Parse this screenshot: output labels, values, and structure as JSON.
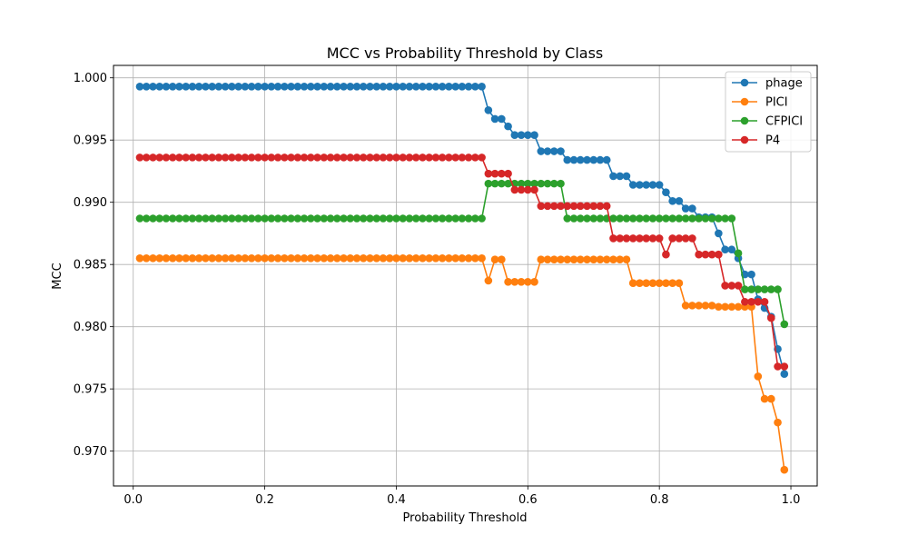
{
  "chart_data": {
    "type": "line",
    "title": "MCC vs Probability Threshold by Class",
    "xlabel": "Probability Threshold",
    "ylabel": "MCC",
    "xlim": [
      -0.03,
      1.04
    ],
    "ylim": [
      0.9672,
      1.001
    ],
    "xticks": [
      "0.0",
      "0.2",
      "0.4",
      "0.6",
      "0.8",
      "1.0"
    ],
    "yticks": [
      "0.970",
      "0.975",
      "0.980",
      "0.985",
      "0.990",
      "0.995",
      "1.000"
    ],
    "grid": true,
    "legend_position": "top-right",
    "x": [
      0.01,
      0.02,
      0.03,
      0.04,
      0.05,
      0.06,
      0.07,
      0.08,
      0.09,
      0.1,
      0.11,
      0.12,
      0.13,
      0.14,
      0.15,
      0.16,
      0.17,
      0.18,
      0.19,
      0.2,
      0.21,
      0.22,
      0.23,
      0.24,
      0.25,
      0.26,
      0.27,
      0.28,
      0.29,
      0.3,
      0.31,
      0.32,
      0.33,
      0.34,
      0.35,
      0.36,
      0.37,
      0.38,
      0.39,
      0.4,
      0.41,
      0.42,
      0.43,
      0.44,
      0.45,
      0.46,
      0.47,
      0.48,
      0.49,
      0.5,
      0.51,
      0.52,
      0.53,
      0.54,
      0.55,
      0.56,
      0.57,
      0.58,
      0.59,
      0.6,
      0.61,
      0.62,
      0.63,
      0.64,
      0.65,
      0.66,
      0.67,
      0.68,
      0.69,
      0.7,
      0.71,
      0.72,
      0.73,
      0.74,
      0.75,
      0.76,
      0.77,
      0.78,
      0.79,
      0.8,
      0.81,
      0.82,
      0.83,
      0.84,
      0.85,
      0.86,
      0.87,
      0.88,
      0.89,
      0.9,
      0.91,
      0.92,
      0.93,
      0.94,
      0.95,
      0.96,
      0.97,
      0.98,
      0.99
    ],
    "series": [
      {
        "name": "phage",
        "color": "#1f77b4",
        "values": [
          0.9993,
          0.9993,
          0.9993,
          0.9993,
          0.9993,
          0.9993,
          0.9993,
          0.9993,
          0.9993,
          0.9993,
          0.9993,
          0.9993,
          0.9993,
          0.9993,
          0.9993,
          0.9993,
          0.9993,
          0.9993,
          0.9993,
          0.9993,
          0.9993,
          0.9993,
          0.9993,
          0.9993,
          0.9993,
          0.9993,
          0.9993,
          0.9993,
          0.9993,
          0.9993,
          0.9993,
          0.9993,
          0.9993,
          0.9993,
          0.9993,
          0.9993,
          0.9993,
          0.9993,
          0.9993,
          0.9993,
          0.9993,
          0.9993,
          0.9993,
          0.9993,
          0.9993,
          0.9993,
          0.9993,
          0.9993,
          0.9993,
          0.9993,
          0.9993,
          0.9993,
          0.9993,
          0.9974,
          0.9967,
          0.9967,
          0.9961,
          0.9954,
          0.9954,
          0.9954,
          0.9954,
          0.9941,
          0.9941,
          0.9941,
          0.9941,
          0.9934,
          0.9934,
          0.9934,
          0.9934,
          0.9934,
          0.9934,
          0.9934,
          0.9921,
          0.9921,
          0.9921,
          0.9914,
          0.9914,
          0.9914,
          0.9914,
          0.9914,
          0.9908,
          0.9901,
          0.9901,
          0.9895,
          0.9895,
          0.9888,
          0.9888,
          0.9888,
          0.9875,
          0.9862,
          0.9862,
          0.9855,
          0.9842,
          0.9842,
          0.9822,
          0.9815,
          0.9808,
          0.9782,
          0.9762
        ]
      },
      {
        "name": "PICI",
        "color": "#ff7f0e",
        "values": [
          0.9855,
          0.9855,
          0.9855,
          0.9855,
          0.9855,
          0.9855,
          0.9855,
          0.9855,
          0.9855,
          0.9855,
          0.9855,
          0.9855,
          0.9855,
          0.9855,
          0.9855,
          0.9855,
          0.9855,
          0.9855,
          0.9855,
          0.9855,
          0.9855,
          0.9855,
          0.9855,
          0.9855,
          0.9855,
          0.9855,
          0.9855,
          0.9855,
          0.9855,
          0.9855,
          0.9855,
          0.9855,
          0.9855,
          0.9855,
          0.9855,
          0.9855,
          0.9855,
          0.9855,
          0.9855,
          0.9855,
          0.9855,
          0.9855,
          0.9855,
          0.9855,
          0.9855,
          0.9855,
          0.9855,
          0.9855,
          0.9855,
          0.9855,
          0.9855,
          0.9855,
          0.9855,
          0.9837,
          0.9854,
          0.9854,
          0.9836,
          0.9836,
          0.9836,
          0.9836,
          0.9836,
          0.9854,
          0.9854,
          0.9854,
          0.9854,
          0.9854,
          0.9854,
          0.9854,
          0.9854,
          0.9854,
          0.9854,
          0.9854,
          0.9854,
          0.9854,
          0.9854,
          0.9835,
          0.9835,
          0.9835,
          0.9835,
          0.9835,
          0.9835,
          0.9835,
          0.9835,
          0.9817,
          0.9817,
          0.9817,
          0.9817,
          0.9817,
          0.9816,
          0.9816,
          0.9816,
          0.9816,
          0.9816,
          0.9816,
          0.976,
          0.9742,
          0.9742,
          0.9723,
          0.9685
        ]
      },
      {
        "name": "CFPICI",
        "color": "#2ca02c",
        "values": [
          0.9887,
          0.9887,
          0.9887,
          0.9887,
          0.9887,
          0.9887,
          0.9887,
          0.9887,
          0.9887,
          0.9887,
          0.9887,
          0.9887,
          0.9887,
          0.9887,
          0.9887,
          0.9887,
          0.9887,
          0.9887,
          0.9887,
          0.9887,
          0.9887,
          0.9887,
          0.9887,
          0.9887,
          0.9887,
          0.9887,
          0.9887,
          0.9887,
          0.9887,
          0.9887,
          0.9887,
          0.9887,
          0.9887,
          0.9887,
          0.9887,
          0.9887,
          0.9887,
          0.9887,
          0.9887,
          0.9887,
          0.9887,
          0.9887,
          0.9887,
          0.9887,
          0.9887,
          0.9887,
          0.9887,
          0.9887,
          0.9887,
          0.9887,
          0.9887,
          0.9887,
          0.9887,
          0.9915,
          0.9915,
          0.9915,
          0.9915,
          0.9915,
          0.9915,
          0.9915,
          0.9915,
          0.9915,
          0.9915,
          0.9915,
          0.9915,
          0.9887,
          0.9887,
          0.9887,
          0.9887,
          0.9887,
          0.9887,
          0.9887,
          0.9887,
          0.9887,
          0.9887,
          0.9887,
          0.9887,
          0.9887,
          0.9887,
          0.9887,
          0.9887,
          0.9887,
          0.9887,
          0.9887,
          0.9887,
          0.9887,
          0.9887,
          0.9887,
          0.9887,
          0.9887,
          0.9887,
          0.9859,
          0.983,
          0.983,
          0.983,
          0.983,
          0.983,
          0.983,
          0.9802
        ]
      },
      {
        "name": "P4",
        "color": "#d62728",
        "values": [
          0.9936,
          0.9936,
          0.9936,
          0.9936,
          0.9936,
          0.9936,
          0.9936,
          0.9936,
          0.9936,
          0.9936,
          0.9936,
          0.9936,
          0.9936,
          0.9936,
          0.9936,
          0.9936,
          0.9936,
          0.9936,
          0.9936,
          0.9936,
          0.9936,
          0.9936,
          0.9936,
          0.9936,
          0.9936,
          0.9936,
          0.9936,
          0.9936,
          0.9936,
          0.9936,
          0.9936,
          0.9936,
          0.9936,
          0.9936,
          0.9936,
          0.9936,
          0.9936,
          0.9936,
          0.9936,
          0.9936,
          0.9936,
          0.9936,
          0.9936,
          0.9936,
          0.9936,
          0.9936,
          0.9936,
          0.9936,
          0.9936,
          0.9936,
          0.9936,
          0.9936,
          0.9936,
          0.9923,
          0.9923,
          0.9923,
          0.9923,
          0.991,
          0.991,
          0.991,
          0.991,
          0.9897,
          0.9897,
          0.9897,
          0.9897,
          0.9897,
          0.9897,
          0.9897,
          0.9897,
          0.9897,
          0.9897,
          0.9897,
          0.9871,
          0.9871,
          0.9871,
          0.9871,
          0.9871,
          0.9871,
          0.9871,
          0.9871,
          0.9858,
          0.9871,
          0.9871,
          0.9871,
          0.9871,
          0.9858,
          0.9858,
          0.9858,
          0.9858,
          0.9833,
          0.9833,
          0.9833,
          0.982,
          0.982,
          0.982,
          0.982,
          0.9807,
          0.9768,
          0.9768
        ]
      }
    ]
  }
}
